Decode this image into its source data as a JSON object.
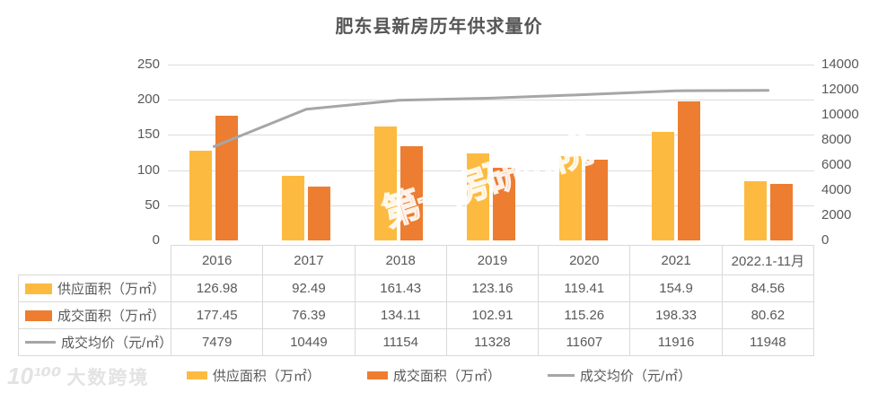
{
  "title": "肥东县新房历年供求量价",
  "watermarks": {
    "center": "第一房研究院",
    "corner_logo": "10¹⁰⁰",
    "corner_text": "大数跨境"
  },
  "colors": {
    "supply_bar": "#FCBB40",
    "deal_bar": "#ED7D31",
    "price_line": "#A6A6A6",
    "grid": "#DCDCDC",
    "text": "#595959"
  },
  "chart_data": {
    "type": "bar+line",
    "title": "肥东县新房历年供求量价",
    "categories": [
      "2016",
      "2017",
      "2018",
      "2019",
      "2020",
      "2021",
      "2022.1-11月"
    ],
    "series": [
      {
        "name": "供应面积（万㎡）",
        "type": "bar",
        "axis": "left",
        "color": "#FCBB40",
        "values": [
          126.98,
          92.49,
          161.43,
          123.16,
          119.41,
          154.9,
          84.56
        ]
      },
      {
        "name": "成交面积（万㎡）",
        "type": "bar",
        "axis": "left",
        "color": "#ED7D31",
        "values": [
          177.45,
          76.39,
          134.11,
          102.91,
          115.26,
          198.33,
          80.62
        ]
      },
      {
        "name": "成交均价（元/㎡）",
        "type": "line",
        "axis": "right",
        "color": "#A6A6A6",
        "values": [
          7479,
          10449,
          11154,
          11328,
          11607,
          11916,
          11948
        ]
      }
    ],
    "left_axis": {
      "min": 0,
      "max": 250,
      "step": 50,
      "ticks": [
        250,
        200,
        150,
        100,
        50,
        0
      ]
    },
    "right_axis": {
      "min": 0,
      "max": 14000,
      "step": 2000,
      "ticks": [
        14000,
        12000,
        10000,
        8000,
        6000,
        4000,
        2000,
        0
      ]
    },
    "grid": true,
    "legend_position": "bottom",
    "table_shown": true
  }
}
